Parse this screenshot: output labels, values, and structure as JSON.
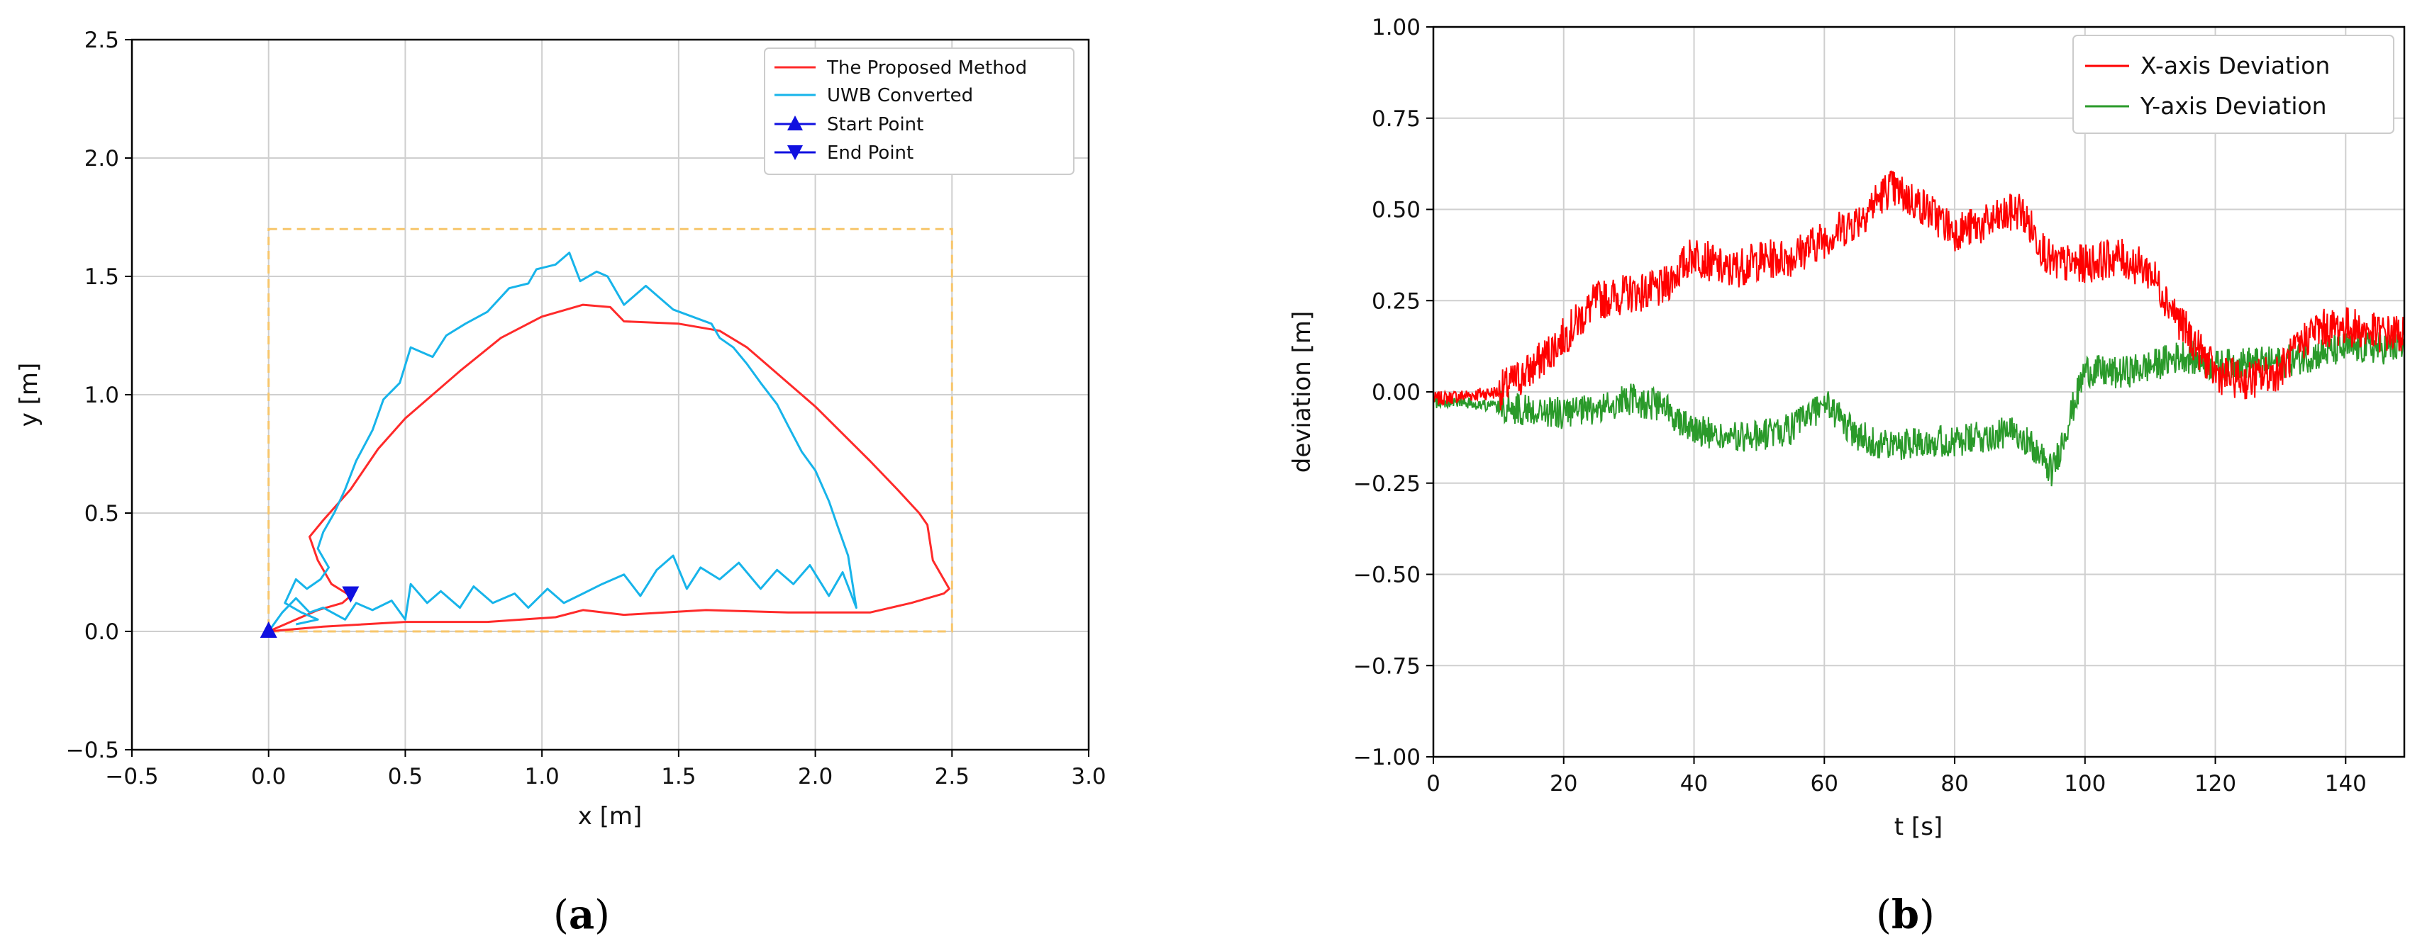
{
  "chart_data": [
    {
      "type": "line",
      "panel_label": "(a)",
      "panel_letter": "a",
      "xlabel": "x [m]",
      "ylabel": "y [m]",
      "xlim": [
        -0.5,
        3.0
      ],
      "ylim": [
        -0.5,
        2.5
      ],
      "xticks": [
        "−0.5",
        "0.0",
        "0.5",
        "1.0",
        "1.5",
        "2.0",
        "2.5",
        "3.0"
      ],
      "yticks": [
        "−0.5",
        "0.0",
        "0.5",
        "1.0",
        "1.5",
        "2.0",
        "2.5"
      ],
      "grid": true,
      "legend_position": "top-right",
      "boundary_rect": {
        "x": [
          0.0,
          2.5
        ],
        "y": [
          0.0,
          1.7
        ],
        "color": "#f7c66b",
        "style": "dashed"
      },
      "series": [
        {
          "name": "The Proposed Method",
          "color": "#ff2a2a",
          "points": [
            [
              0.0,
              0.0
            ],
            [
              0.2,
              0.02
            ],
            [
              0.5,
              0.04
            ],
            [
              0.8,
              0.04
            ],
            [
              1.05,
              0.06
            ],
            [
              1.15,
              0.09
            ],
            [
              1.3,
              0.07
            ],
            [
              1.6,
              0.09
            ],
            [
              1.9,
              0.08
            ],
            [
              2.2,
              0.08
            ],
            [
              2.35,
              0.12
            ],
            [
              2.47,
              0.16
            ],
            [
              2.49,
              0.18
            ],
            [
              2.43,
              0.3
            ],
            [
              2.41,
              0.45
            ],
            [
              2.38,
              0.5
            ],
            [
              2.3,
              0.6
            ],
            [
              2.2,
              0.72
            ],
            [
              2.0,
              0.95
            ],
            [
              1.85,
              1.1
            ],
            [
              1.75,
              1.2
            ],
            [
              1.65,
              1.27
            ],
            [
              1.5,
              1.3
            ],
            [
              1.3,
              1.31
            ],
            [
              1.25,
              1.37
            ],
            [
              1.15,
              1.38
            ],
            [
              1.0,
              1.33
            ],
            [
              0.85,
              1.24
            ],
            [
              0.7,
              1.1
            ],
            [
              0.6,
              1.0
            ],
            [
              0.5,
              0.9
            ],
            [
              0.4,
              0.77
            ],
            [
              0.3,
              0.6
            ],
            [
              0.2,
              0.47
            ],
            [
              0.15,
              0.4
            ],
            [
              0.18,
              0.3
            ],
            [
              0.23,
              0.2
            ],
            [
              0.3,
              0.15
            ],
            [
              0.27,
              0.12
            ],
            [
              0.18,
              0.09
            ],
            [
              0.1,
              0.05
            ],
            [
              0.0,
              0.0
            ]
          ]
        },
        {
          "name": "UWB Converted",
          "color": "#17b4ea",
          "points": [
            [
              0.0,
              0.0
            ],
            [
              0.05,
              0.08
            ],
            [
              0.1,
              0.14
            ],
            [
              0.15,
              0.08
            ],
            [
              0.2,
              0.1
            ],
            [
              0.28,
              0.05
            ],
            [
              0.32,
              0.12
            ],
            [
              0.38,
              0.09
            ],
            [
              0.45,
              0.13
            ],
            [
              0.5,
              0.05
            ],
            [
              0.52,
              0.2
            ],
            [
              0.58,
              0.12
            ],
            [
              0.63,
              0.17
            ],
            [
              0.7,
              0.1
            ],
            [
              0.75,
              0.19
            ],
            [
              0.82,
              0.12
            ],
            [
              0.9,
              0.16
            ],
            [
              0.95,
              0.1
            ],
            [
              1.02,
              0.18
            ],
            [
              1.08,
              0.12
            ],
            [
              1.15,
              0.16
            ],
            [
              1.22,
              0.2
            ],
            [
              1.3,
              0.24
            ],
            [
              1.36,
              0.15
            ],
            [
              1.42,
              0.26
            ],
            [
              1.48,
              0.32
            ],
            [
              1.53,
              0.18
            ],
            [
              1.58,
              0.27
            ],
            [
              1.65,
              0.22
            ],
            [
              1.72,
              0.29
            ],
            [
              1.8,
              0.18
            ],
            [
              1.86,
              0.26
            ],
            [
              1.92,
              0.2
            ],
            [
              1.98,
              0.28
            ],
            [
              2.05,
              0.15
            ],
            [
              2.1,
              0.25
            ],
            [
              2.15,
              0.1
            ],
            [
              2.12,
              0.32
            ],
            [
              2.08,
              0.45
            ],
            [
              2.05,
              0.55
            ],
            [
              2.0,
              0.68
            ],
            [
              1.95,
              0.76
            ],
            [
              1.9,
              0.87
            ],
            [
              1.86,
              0.96
            ],
            [
              1.8,
              1.05
            ],
            [
              1.75,
              1.13
            ],
            [
              1.7,
              1.2
            ],
            [
              1.65,
              1.24
            ],
            [
              1.62,
              1.3
            ],
            [
              1.55,
              1.33
            ],
            [
              1.48,
              1.36
            ],
            [
              1.42,
              1.42
            ],
            [
              1.38,
              1.46
            ],
            [
              1.3,
              1.38
            ],
            [
              1.24,
              1.5
            ],
            [
              1.2,
              1.52
            ],
            [
              1.14,
              1.48
            ],
            [
              1.1,
              1.6
            ],
            [
              1.05,
              1.55
            ],
            [
              0.98,
              1.53
            ],
            [
              0.95,
              1.47
            ],
            [
              0.88,
              1.45
            ],
            [
              0.8,
              1.35
            ],
            [
              0.72,
              1.3
            ],
            [
              0.65,
              1.25
            ],
            [
              0.6,
              1.16
            ],
            [
              0.52,
              1.2
            ],
            [
              0.48,
              1.05
            ],
            [
              0.42,
              0.98
            ],
            [
              0.38,
              0.85
            ],
            [
              0.32,
              0.72
            ],
            [
              0.28,
              0.6
            ],
            [
              0.24,
              0.5
            ],
            [
              0.2,
              0.42
            ],
            [
              0.18,
              0.35
            ],
            [
              0.22,
              0.27
            ],
            [
              0.19,
              0.22
            ],
            [
              0.14,
              0.18
            ],
            [
              0.1,
              0.22
            ],
            [
              0.06,
              0.12
            ],
            [
              0.12,
              0.08
            ],
            [
              0.18,
              0.05
            ],
            [
              0.1,
              0.03
            ]
          ]
        },
        {
          "name": "Start Point",
          "color": "#1010e0",
          "marker": "triangle-up",
          "points": [
            [
              0.0,
              0.0
            ]
          ]
        },
        {
          "name": "End Point",
          "color": "#1010e0",
          "marker": "triangle-down",
          "points": [
            [
              0.3,
              0.16
            ]
          ]
        }
      ]
    },
    {
      "type": "line",
      "panel_label": "(b)",
      "panel_letter": "b",
      "xlabel": "t [s]",
      "ylabel": "deviation [m]",
      "xlim": [
        0,
        149
      ],
      "ylim": [
        -1.0,
        1.0
      ],
      "xticks": [
        "0",
        "20",
        "40",
        "60",
        "80",
        "100",
        "120",
        "140"
      ],
      "yticks": [
        "−1.00",
        "−0.75",
        "−0.50",
        "−0.25",
        "0.00",
        "0.25",
        "0.50",
        "0.75",
        "1.00"
      ],
      "grid": true,
      "legend_position": "top-right",
      "series": [
        {
          "name": "X-axis Deviation",
          "color": "#ff0000",
          "x": [
            0,
            5,
            10,
            15,
            20,
            25,
            30,
            35,
            40,
            45,
            50,
            55,
            60,
            65,
            70,
            75,
            80,
            85,
            90,
            95,
            100,
            105,
            110,
            115,
            120,
            125,
            130,
            135,
            140,
            145,
            149
          ],
          "y": [
            -0.02,
            -0.01,
            0.0,
            0.06,
            0.15,
            0.25,
            0.27,
            0.28,
            0.38,
            0.33,
            0.36,
            0.37,
            0.42,
            0.47,
            0.56,
            0.51,
            0.44,
            0.46,
            0.5,
            0.35,
            0.35,
            0.37,
            0.33,
            0.18,
            0.05,
            0.03,
            0.06,
            0.17,
            0.18,
            0.16,
            0.16
          ]
        },
        {
          "name": "Y-axis Deviation",
          "color": "#2a9a2a",
          "x": [
            0,
            5,
            10,
            15,
            20,
            25,
            30,
            35,
            40,
            45,
            50,
            55,
            60,
            65,
            70,
            75,
            80,
            85,
            90,
            95,
            100,
            105,
            110,
            115,
            120,
            125,
            130,
            135,
            140,
            145,
            149
          ],
          "y": [
            -0.03,
            -0.03,
            -0.04,
            -0.05,
            -0.06,
            -0.05,
            -0.02,
            -0.04,
            -0.1,
            -0.13,
            -0.12,
            -0.1,
            -0.03,
            -0.12,
            -0.15,
            -0.13,
            -0.14,
            -0.12,
            -0.11,
            -0.22,
            0.06,
            0.05,
            0.07,
            0.1,
            0.07,
            0.08,
            0.08,
            0.1,
            0.12,
            0.12,
            0.12
          ]
        }
      ]
    }
  ]
}
